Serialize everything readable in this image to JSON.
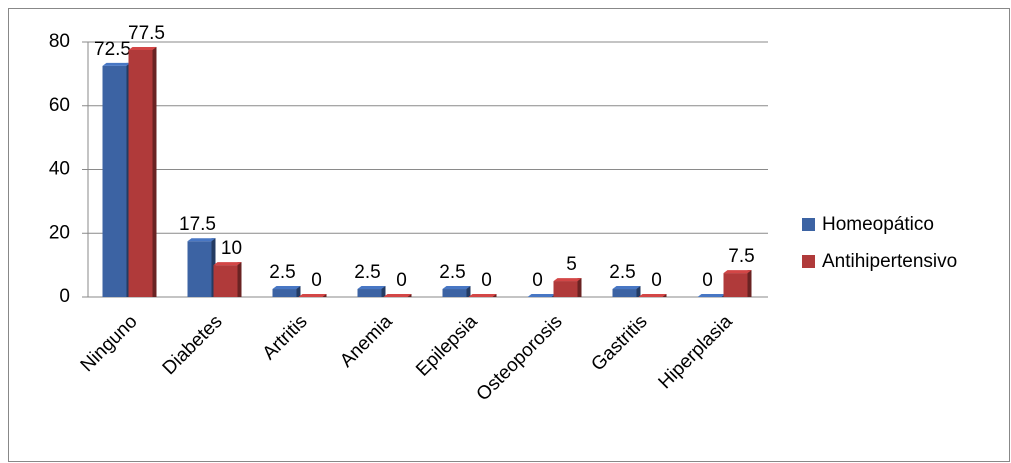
{
  "chart_data": {
    "type": "bar",
    "categories": [
      "Ninguno",
      "Diabetes",
      "Artritis",
      "Anemia",
      "Epilepsia",
      "Osteoporosis",
      "Gastritis",
      "Hiperplasia"
    ],
    "series": [
      {
        "name": "Homeopático",
        "color": "#3c63a3",
        "values": [
          72.5,
          17.5,
          2.5,
          2.5,
          2.5,
          0,
          2.5,
          0
        ]
      },
      {
        "name": "Antihipertensivo",
        "color": "#b03a3a",
        "values": [
          77.5,
          10,
          0,
          0,
          0,
          5,
          0,
          7.5
        ]
      }
    ],
    "ylim": [
      0,
      80
    ],
    "yticks": [
      0,
      20,
      40,
      60,
      80
    ],
    "grid": true,
    "legend": "right"
  }
}
